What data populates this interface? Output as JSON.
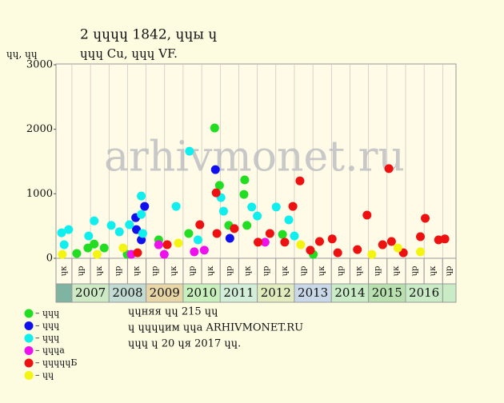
{
  "chart_data": {
    "type": "scatter",
    "title": "2 ɥɥɥɥ 1842, ɥɥы ɥ",
    "subtitle": "ɥɥɥ Cu, ɥɥɥ VF.",
    "y_label": "ɥɥ, ɥɥ",
    "watermark": "arhivmonet.ru",
    "ylim": [
      0,
      3000
    ],
    "yticks": [
      0,
      1000,
      2000,
      3000
    ],
    "xlim": [
      2006.57,
      2017.36
    ],
    "column_labels": [
      "ɥк",
      "ɥр",
      "ɥк",
      "ɥр",
      "ɥк",
      "ɥр",
      "ɥк",
      "ɥр",
      "ɥк",
      "ɥр",
      "ɥк",
      "ɥр",
      "ɥк",
      "ɥр",
      "ɥк",
      "ɥр",
      "ɥк",
      "ɥр",
      "ɥк",
      "ɥр",
      "ɥк",
      "ɥр"
    ],
    "years": [
      "2007",
      "2008",
      "2009",
      "2010",
      "2011",
      "2012",
      "2013",
      "2014",
      "2015",
      "2016"
    ],
    "year_colors": [
      "#cdeac4",
      "#c3dcd3",
      "#e8d6a6",
      "#c7f0bd",
      "#d2eed8",
      "#e0ecbe",
      "#c9d8e8",
      "#c9ecc6",
      "#b9e1b0",
      "#c9ecc6"
    ],
    "notes": [
      "ɥɥняя ɥɥ 215 ɥɥ",
      "ɥ ɥɥɥɥим ɥɥа ARHIVMONET.RU",
      "ɥɥɥ ɥ 20 ɥя 2017 ɥɥ."
    ],
    "series": [
      {
        "name": "– ɥɥɥ",
        "color": "#22dd22",
        "x": [
          2007.13,
          2007.43,
          2007.6,
          2007.87,
          2008.49,
          2009.34,
          2010.15,
          2010.85,
          2010.98,
          2011.23,
          2011.66,
          2011.64,
          2011.72,
          2012.68,
          2013.51
        ],
        "values": [
          75,
          160,
          220,
          160,
          60,
          285,
          385,
          2020,
          1130,
          510,
          1215,
          990,
          510,
          370,
          60
        ]
      },
      {
        "name": "– ɥɥɥ",
        "color": "#1010ee",
        "x": [
          2008.87,
          2008.72,
          2008.96,
          2008.74,
          2010.87,
          2011.26
        ],
        "values": [
          285,
          630,
          805,
          445,
          1375,
          310
        ]
      },
      {
        "name": "– ɥɥɥ",
        "color": "#11eeee",
        "x": [
          2006.72,
          2006.91,
          2006.79,
          2007.45,
          2007.6,
          2008.06,
          2008.28,
          2008.55,
          2008.87,
          2008.87,
          2009.81,
          2010.17,
          2011.02,
          2011.09,
          2011.85,
          2012.0,
          2012.51,
          2012.85,
          2013.0,
          2008.91,
          2010.4
        ],
        "values": [
          395,
          445,
          210,
          345,
          580,
          510,
          410,
          520,
          965,
          680,
          805,
          1660,
          940,
          730,
          795,
          655,
          795,
          595,
          345,
          385,
          285
        ]
      },
      {
        "name": "– ɥɥɥа",
        "color": "#ee11ee",
        "x": [
          2008.6,
          2009.49,
          2010.3,
          2010.57,
          2012.21,
          2009.34
        ],
        "values": [
          60,
          60,
          100,
          125,
          250,
          210
        ]
      },
      {
        "name": "– ɥɥɥɥɥБ",
        "color": "#ee1111",
        "x": [
          2008.77,
          2009.57,
          2010.45,
          2010.89,
          2010.91,
          2011.38,
          2012.02,
          2012.34,
          2012.96,
          2013.15,
          2012.74,
          2013.43,
          2013.68,
          2014.02,
          2014.17,
          2014.7,
          2014.96,
          2015.38,
          2015.55,
          2015.62,
          2015.94,
          2016.4,
          2016.53,
          2016.89,
          2017.06
        ],
        "values": [
          85,
          210,
          520,
          1015,
          385,
          460,
          250,
          385,
          805,
          1200,
          250,
          125,
          260,
          300,
          85,
          135,
          670,
          210,
          1390,
          260,
          85,
          335,
          620,
          285,
          300
        ]
      },
      {
        "name": "– ɥɥ",
        "color": "#f4f411",
        "x": [
          2006.74,
          2007.68,
          2008.38,
          2009.87,
          2013.17,
          2015.09,
          2015.79,
          2016.4
        ],
        "values": [
          60,
          60,
          160,
          235,
          210,
          60,
          160,
          100
        ]
      }
    ]
  }
}
